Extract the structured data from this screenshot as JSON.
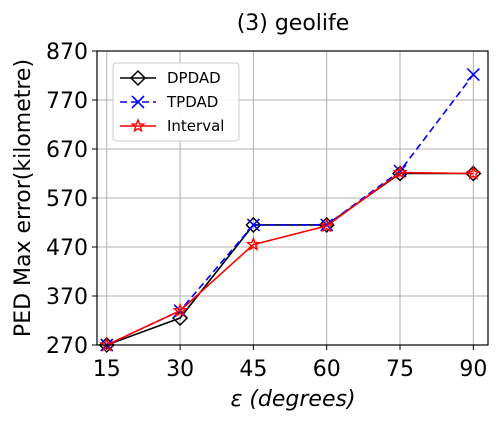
{
  "chart_data": {
    "type": "line",
    "title": "(3) geolife",
    "xlabel_symbol": "ε",
    "xlabel_text": "(degrees)",
    "ylabel": "PED Max error(kilometre)",
    "x": [
      15,
      30,
      45,
      60,
      75,
      90
    ],
    "xlim": [
      13,
      93
    ],
    "ylim": [
      270,
      870
    ],
    "yticks": [
      270,
      370,
      470,
      570,
      670,
      770,
      870
    ],
    "grid": true,
    "legend_position": "top-left",
    "series": [
      {
        "name": "DPDAD",
        "values": [
          270,
          325,
          515,
          515,
          620,
          620
        ],
        "color": "#000000",
        "marker": "diamond",
        "line": "solid"
      },
      {
        "name": "TPDAD",
        "values": [
          270,
          340,
          515,
          515,
          625,
          822
        ],
        "color": "#0000ff",
        "marker": "x",
        "line": "dashed"
      },
      {
        "name": "Interval",
        "values": [
          270,
          340,
          475,
          513,
          622,
          620
        ],
        "color": "#ff0000",
        "marker": "star",
        "line": "solid"
      }
    ]
  }
}
